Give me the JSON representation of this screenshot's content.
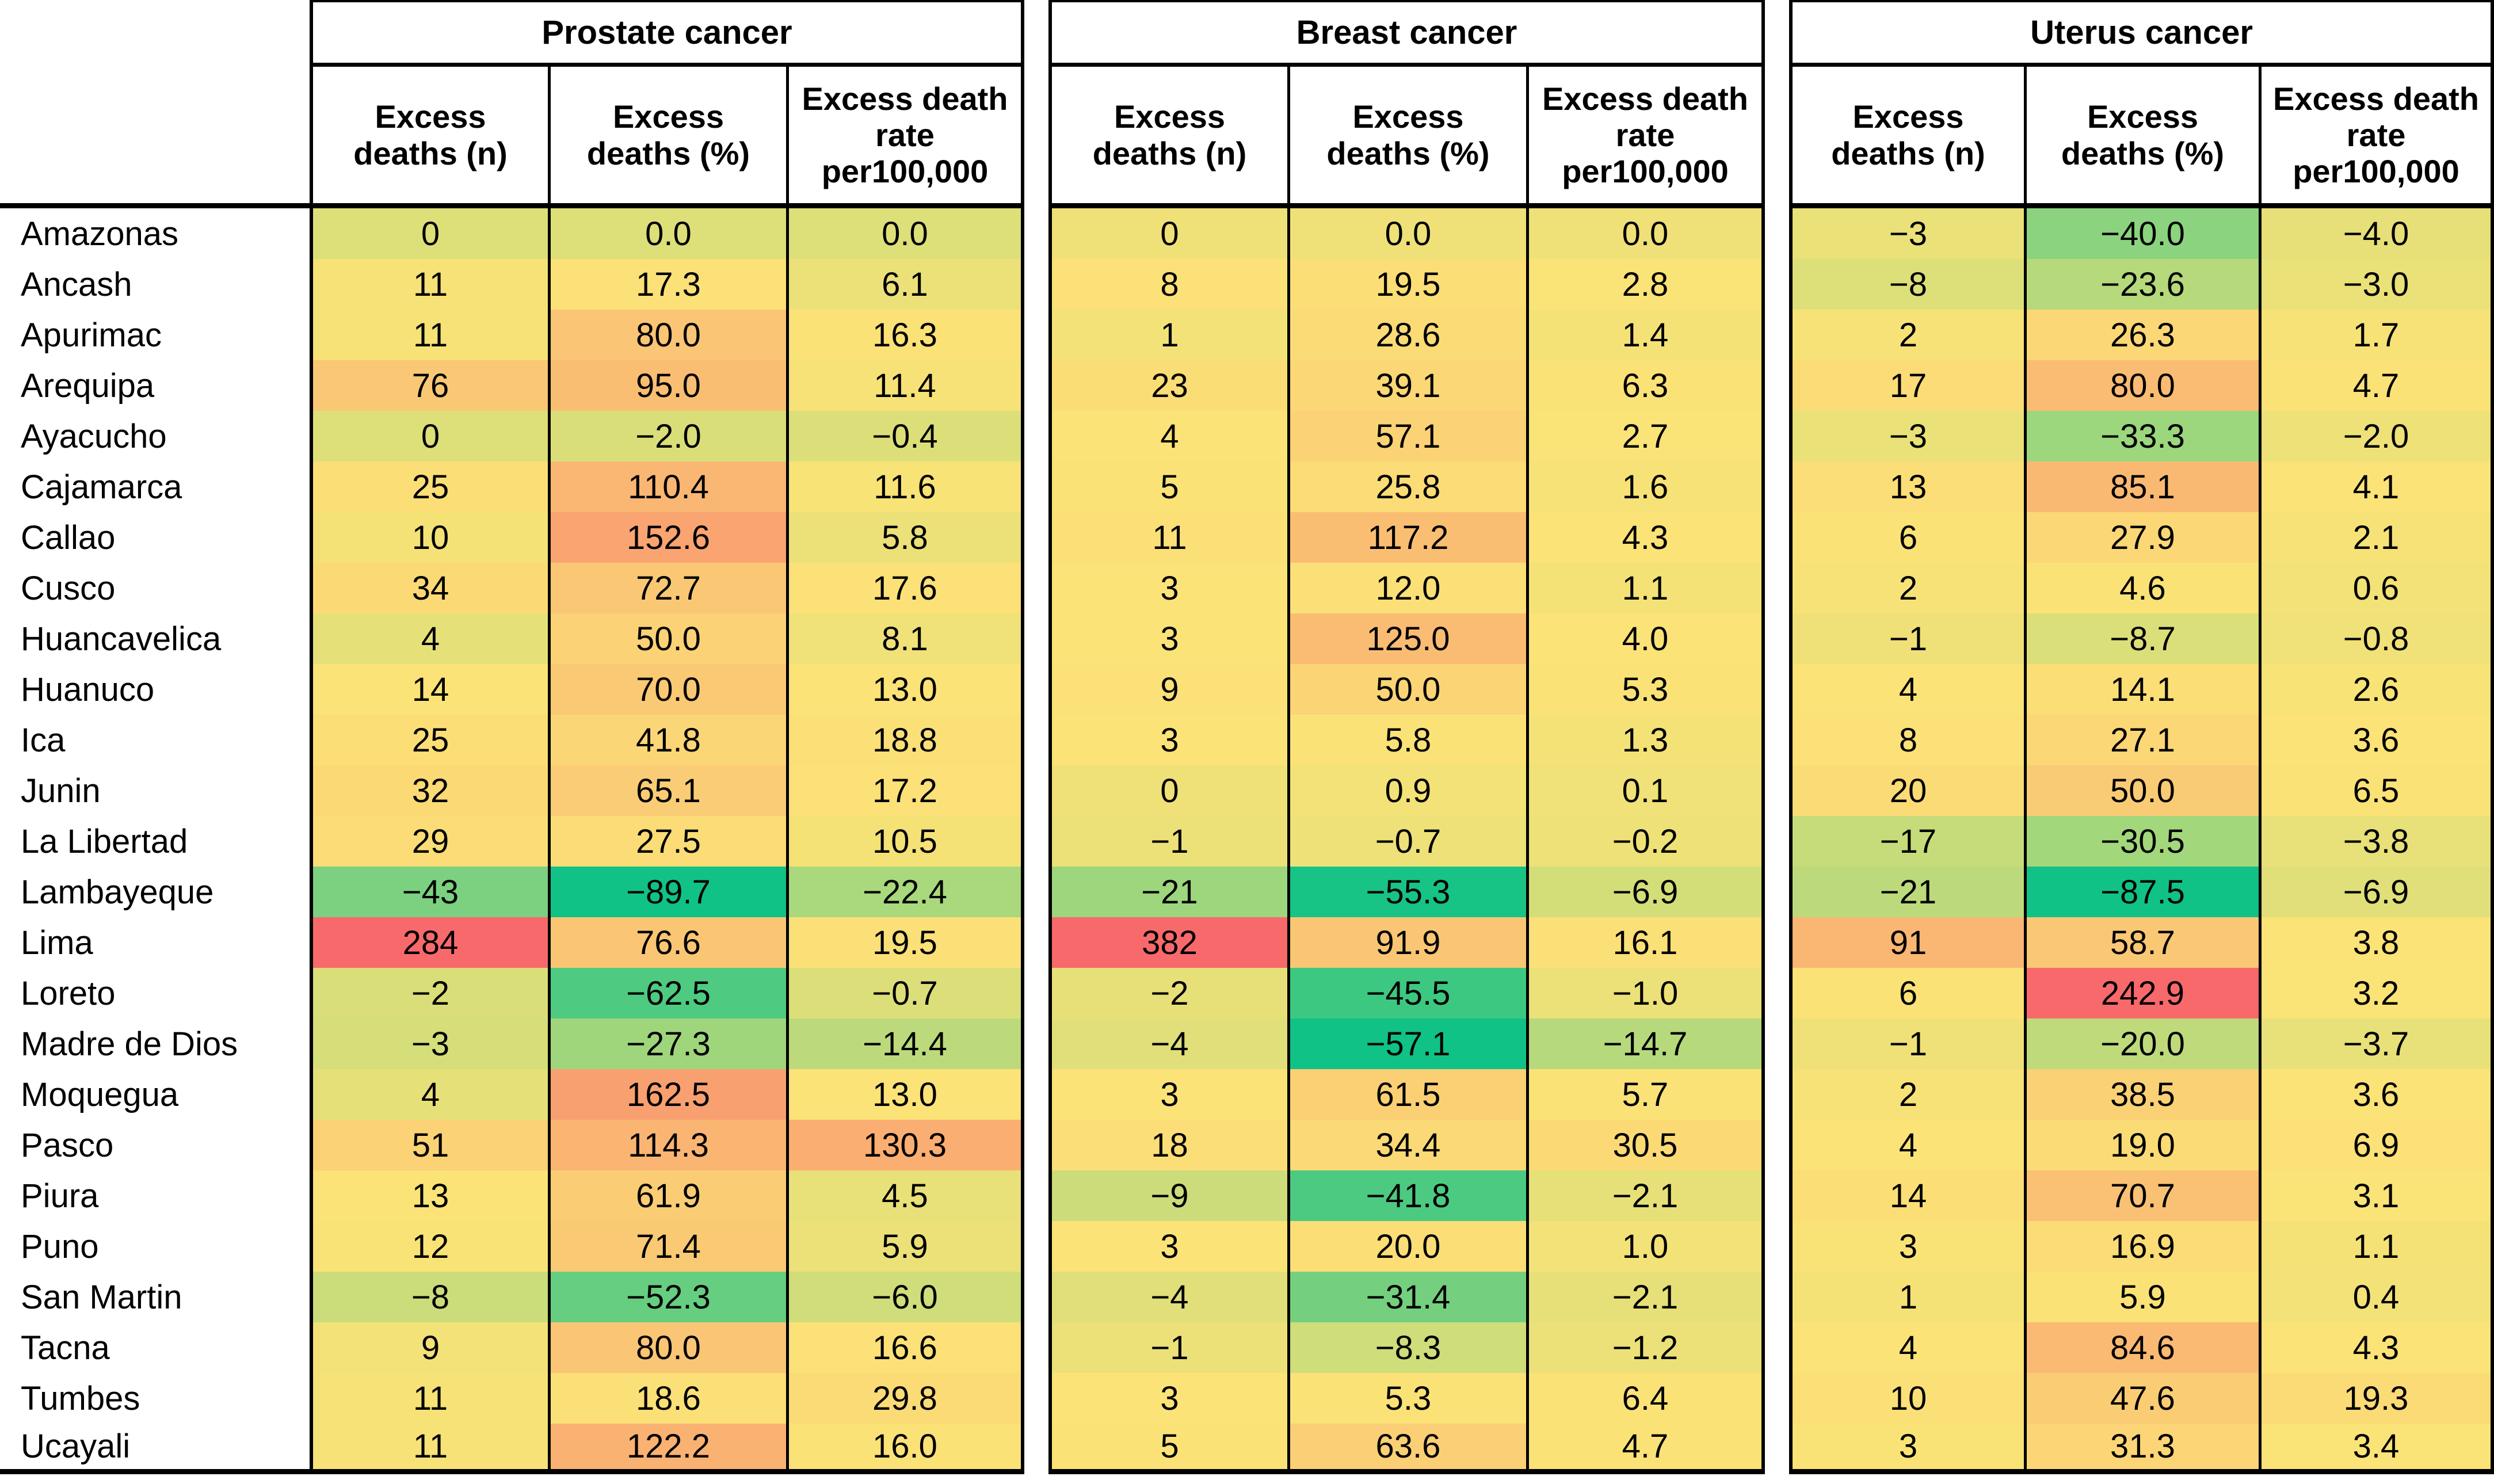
{
  "table": {
    "corner_label": "",
    "groups": [
      {
        "key": "prostate",
        "label": "Prostate cancer"
      },
      {
        "key": "breast",
        "label": "Breast cancer"
      },
      {
        "key": "uterus",
        "label": "Uterus cancer"
      }
    ],
    "subcolumns": [
      {
        "key": "n",
        "label": "Excess\ndeaths (n)",
        "format": "int"
      },
      {
        "key": "pct",
        "label": "Excess\ndeaths (%)",
        "format": "dec1"
      },
      {
        "key": "rate",
        "label": "Excess death\nrate\nper100,000",
        "format": "dec1"
      }
    ]
  },
  "chart_data": {
    "type": "heatmap",
    "title": "",
    "row_labels": [
      "Amazonas",
      "Ancash",
      "Apurimac",
      "Arequipa",
      "Ayacucho",
      "Cajamarca",
      "Callao",
      "Cusco",
      "Huancavelica",
      "Huanuco",
      "Ica",
      "Junin",
      "La Libertad",
      "Lambayeque",
      "Lima",
      "Loreto",
      "Madre de Dios",
      "Moquegua",
      "Pasco",
      "Piura",
      "Puno",
      "San Martin",
      "Tacna",
      "Tumbes",
      "Ucayali"
    ],
    "column_groups": [
      "Prostate cancer",
      "Breast cancer",
      "Uterus cancer"
    ],
    "columns_per_group": [
      "Excess deaths (n)",
      "Excess deaths (%)",
      "Excess death rate per100,000"
    ],
    "values": {
      "prostate": {
        "n": [
          0,
          11,
          11,
          76,
          0,
          25,
          10,
          34,
          4,
          14,
          25,
          32,
          29,
          -43,
          284,
          -2,
          -3,
          4,
          51,
          13,
          12,
          -8,
          9,
          11,
          11
        ],
        "pct": [
          0.0,
          17.3,
          80.0,
          95.0,
          -2.0,
          110.4,
          152.6,
          72.7,
          50.0,
          70.0,
          41.8,
          65.1,
          27.5,
          -89.7,
          76.6,
          -62.5,
          -27.3,
          162.5,
          114.3,
          61.9,
          71.4,
          -52.3,
          80.0,
          18.6,
          122.2
        ],
        "rate": [
          0.0,
          6.1,
          16.3,
          11.4,
          -0.4,
          11.6,
          5.8,
          17.6,
          8.1,
          13.0,
          18.8,
          17.2,
          10.5,
          -22.4,
          19.5,
          -0.7,
          -14.4,
          13.0,
          130.3,
          4.5,
          5.9,
          -6.0,
          16.6,
          29.8,
          16.0
        ]
      },
      "breast": {
        "n": [
          0,
          8,
          1,
          23,
          4,
          5,
          11,
          3,
          3,
          9,
          3,
          0,
          -1,
          -21,
          382,
          -2,
          -4,
          3,
          18,
          -9,
          3,
          -4,
          -1,
          3,
          5
        ],
        "pct": [
          0.0,
          19.5,
          28.6,
          39.1,
          57.1,
          25.8,
          117.2,
          12.0,
          125.0,
          50.0,
          5.8,
          0.9,
          -0.7,
          -55.3,
          91.9,
          -45.5,
          -57.1,
          61.5,
          34.4,
          -41.8,
          20.0,
          -31.4,
          -8.3,
          5.3,
          63.6
        ],
        "rate": [
          0.0,
          2.8,
          1.4,
          6.3,
          2.7,
          1.6,
          4.3,
          1.1,
          4.0,
          5.3,
          1.3,
          0.1,
          -0.2,
          -6.9,
          16.1,
          -1.0,
          -14.7,
          5.7,
          30.5,
          -2.1,
          1.0,
          -2.1,
          -1.2,
          6.4,
          4.7
        ]
      },
      "uterus": {
        "n": [
          -3,
          -8,
          2,
          17,
          -3,
          13,
          6,
          2,
          -1,
          4,
          8,
          20,
          -17,
          -21,
          91,
          6,
          -1,
          2,
          4,
          14,
          3,
          1,
          4,
          10,
          3
        ],
        "pct": [
          -40.0,
          -23.6,
          26.3,
          80.0,
          -33.3,
          85.1,
          27.9,
          4.6,
          -8.7,
          14.1,
          27.1,
          50.0,
          -30.5,
          -87.5,
          58.7,
          242.9,
          -20.0,
          38.5,
          19.0,
          70.7,
          16.9,
          5.9,
          84.6,
          47.6,
          31.3
        ],
        "rate": [
          -4.0,
          -3.0,
          1.7,
          4.7,
          -2.0,
          4.1,
          2.1,
          0.6,
          -0.8,
          2.6,
          3.6,
          6.5,
          -3.8,
          -6.9,
          3.8,
          3.2,
          -3.7,
          3.6,
          6.9,
          3.1,
          1.1,
          0.4,
          4.3,
          19.3,
          3.4
        ]
      }
    },
    "colorscale": {
      "mode": "3-color scale per cancer block",
      "min_color": "#10C285",
      "mid_color": "#FBE377",
      "max_color": "#F8696B",
      "mid_anchor": "block median"
    },
    "layout": {
      "grid": false,
      "legend": "none",
      "minus_glyph": "−"
    }
  }
}
